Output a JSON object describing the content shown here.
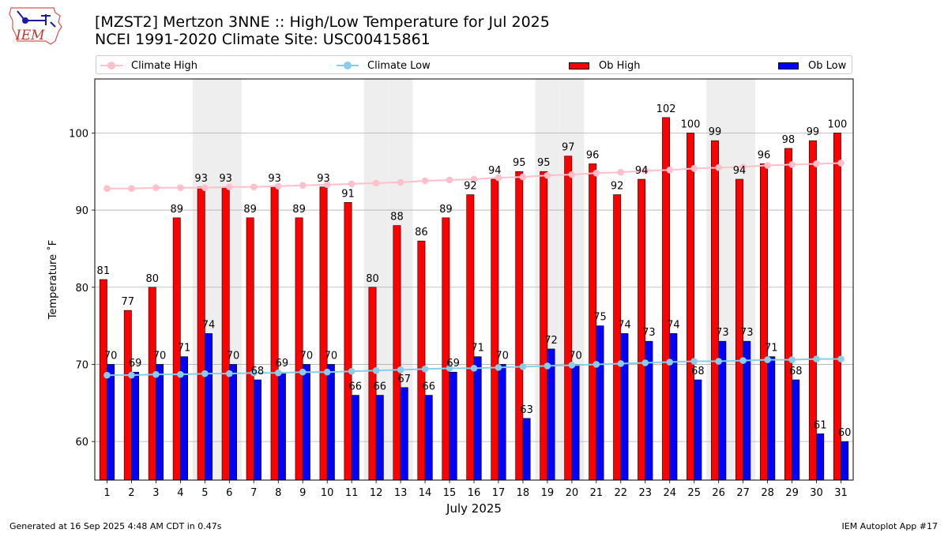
{
  "header": {
    "title_line1": "[MZST2] Mertzon 3NNE :: High/Low Temperature for Jul 2025",
    "title_line2": "NCEI 1991-2020 Climate Site: USC00415861",
    "logo_text": "IEM"
  },
  "legend": {
    "climate_high": "Climate High",
    "climate_low": "Climate Low",
    "ob_high": "Ob High",
    "ob_low": "Ob Low"
  },
  "footer": {
    "generated": "Generated at 16 Sep 2025 4:48 AM CDT in 0.47s",
    "app": "IEM Autoplot App #17"
  },
  "colors": {
    "ob_high": "#ff0000",
    "ob_low": "#0000ff",
    "climate_high": "#ffc0cb",
    "climate_low": "#87ceeb",
    "weekend_band": "#eeeeee",
    "grid": "#b0b0b0"
  },
  "chart_data": {
    "type": "bar",
    "title": "[MZST2] Mertzon 3NNE :: High/Low Temperature for Jul 2025",
    "subtitle": "NCEI 1991-2020 Climate Site: USC00415861",
    "xlabel": "July 2025",
    "ylabel": "Temperature ˚F",
    "ylim": [
      55,
      107
    ],
    "yticks": [
      60,
      70,
      80,
      90,
      100
    ],
    "grid": true,
    "legend_position": "top",
    "categories": [
      "1",
      "2",
      "3",
      "4",
      "5",
      "6",
      "7",
      "8",
      "9",
      "10",
      "11",
      "12",
      "13",
      "14",
      "15",
      "16",
      "17",
      "18",
      "19",
      "20",
      "21",
      "22",
      "23",
      "24",
      "25",
      "26",
      "27",
      "28",
      "29",
      "30",
      "31"
    ],
    "weekend_days": [
      5,
      6,
      12,
      13,
      19,
      20,
      26,
      27
    ],
    "series": [
      {
        "name": "Ob High",
        "kind": "bar",
        "values": [
          81,
          77,
          80,
          89,
          93,
          93,
          89,
          93,
          89,
          93,
          91,
          80,
          88,
          86,
          89,
          92,
          94,
          95,
          95,
          97,
          96,
          92,
          94,
          102,
          100,
          99,
          94,
          96,
          98,
          99,
          100
        ]
      },
      {
        "name": "Ob Low",
        "kind": "bar",
        "values": [
          70,
          69,
          70,
          71,
          74,
          70,
          68,
          69,
          70,
          70,
          66,
          66,
          67,
          66,
          69,
          71,
          70,
          63,
          72,
          70,
          75,
          74,
          73,
          74,
          68,
          73,
          73,
          71,
          68,
          61,
          60
        ]
      },
      {
        "name": "Climate High",
        "kind": "line",
        "values": [
          92.8,
          92.8,
          92.9,
          92.9,
          92.9,
          93.0,
          93.0,
          93.1,
          93.2,
          93.3,
          93.4,
          93.5,
          93.6,
          93.8,
          93.9,
          94.0,
          94.2,
          94.3,
          94.5,
          94.6,
          94.8,
          94.9,
          95.1,
          95.2,
          95.4,
          95.5,
          95.6,
          95.8,
          95.9,
          96.0,
          96.1
        ]
      },
      {
        "name": "Climate Low",
        "kind": "line",
        "values": [
          68.6,
          68.6,
          68.7,
          68.7,
          68.8,
          68.8,
          68.9,
          68.9,
          69.0,
          69.0,
          69.1,
          69.2,
          69.3,
          69.4,
          69.5,
          69.5,
          69.6,
          69.7,
          69.8,
          69.9,
          70.0,
          70.1,
          70.2,
          70.3,
          70.4,
          70.4,
          70.5,
          70.6,
          70.6,
          70.7,
          70.7
        ]
      }
    ]
  }
}
